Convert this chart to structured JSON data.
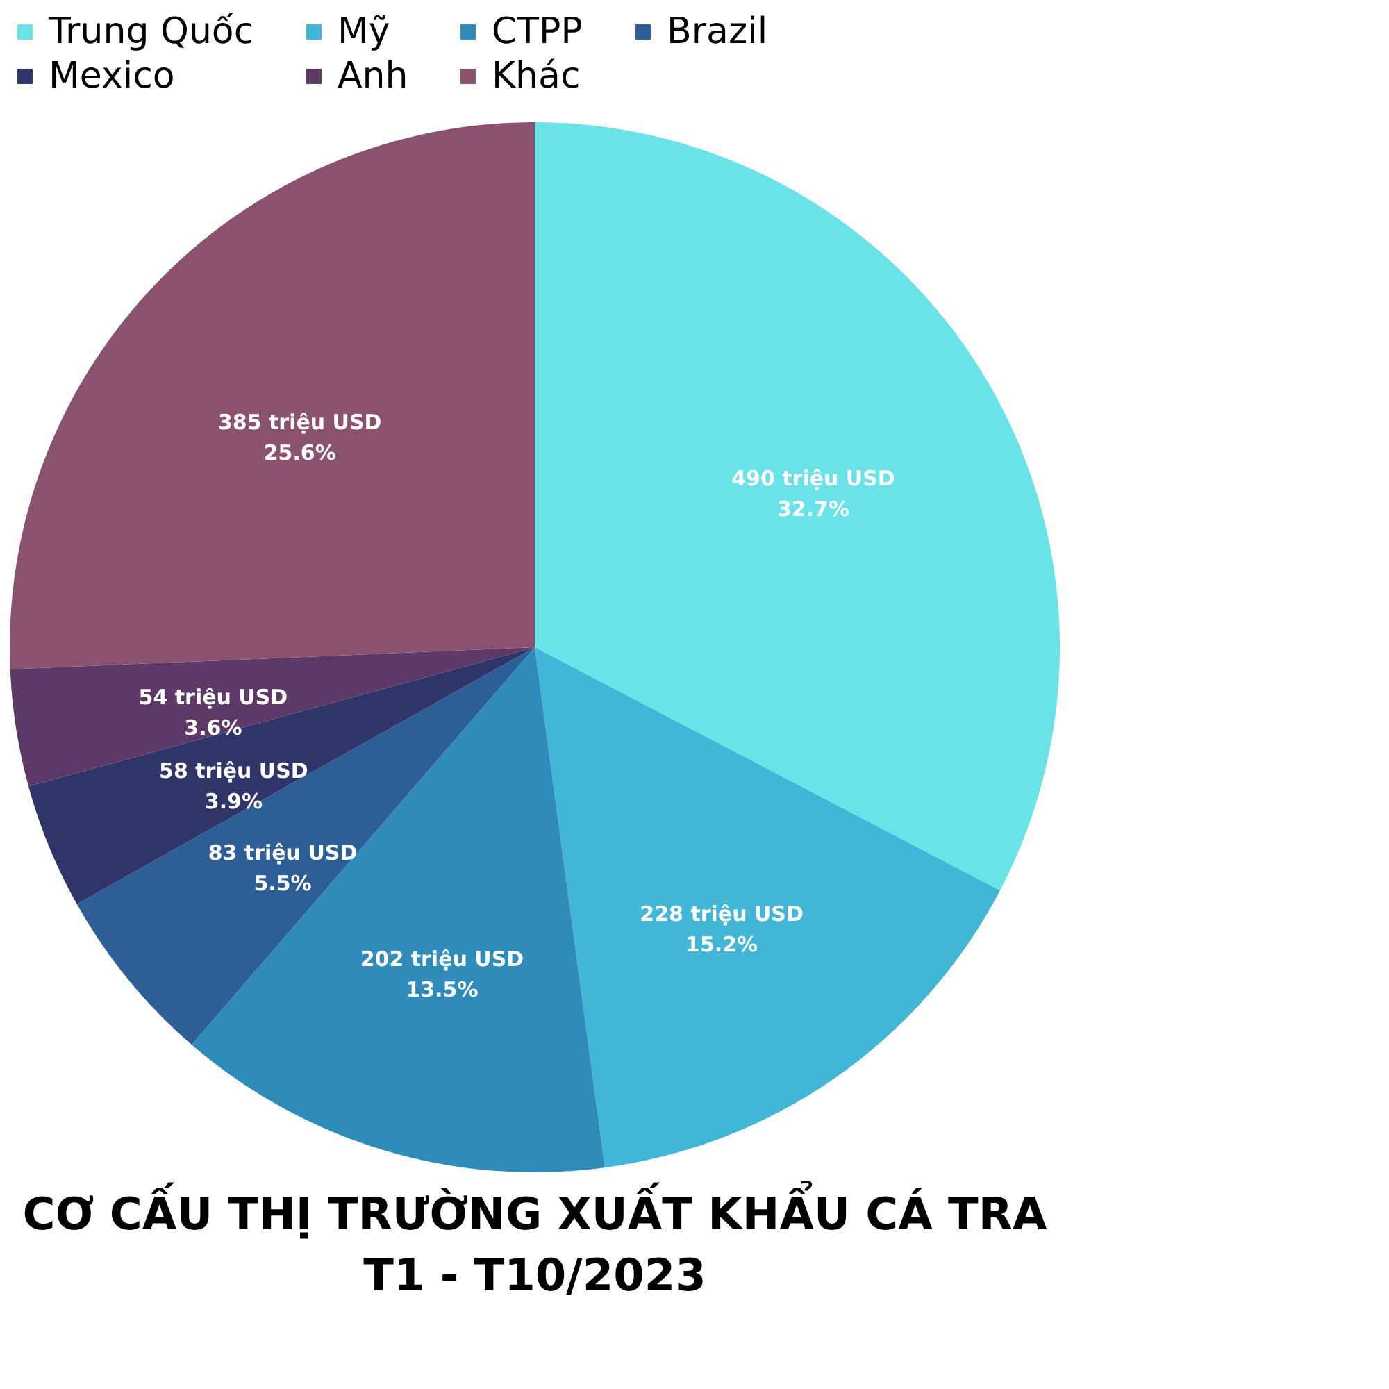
{
  "chart_data": {
    "type": "pie",
    "title": "CƠ CẤU THỊ TRƯỜNG XUẤT KHẨU CÁ TRA\nT1 - T10/2023",
    "categories": [
      "Trung Quốc",
      "Mỹ",
      "CTPP",
      "Brazil",
      "Mexico",
      "Anh",
      "Khác"
    ],
    "values": [
      490,
      228,
      202,
      83,
      58,
      54,
      385
    ],
    "colors": [
      "#6ae3e8",
      "#42b6d6",
      "#2e8bba",
      "#2e5e96",
      "#2f3469",
      "#5c3966",
      "#8a526f"
    ],
    "value_labels": [
      "490 triệu USD\n32.7%",
      "228 triệu USD\n15.2%",
      "202 triệu USD\n13.5%",
      "83 triệu USD\n5.5%",
      "58 triệu USD\n3.9%",
      "54 triệu USD\n3.6%",
      "385 triệu USD\n25.6%"
    ],
    "legend": "top"
  }
}
